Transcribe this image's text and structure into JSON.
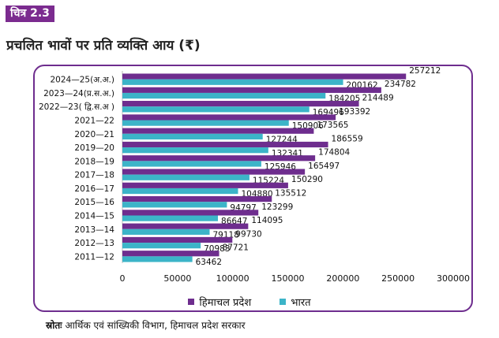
{
  "figure_tag": "चित्र 2.3",
  "title": "प्रचलित भावों पर प्रति व्यक्ति आय (₹)",
  "source": {
    "label": "स्रोतः",
    "text": "आर्थिक एवं सांख्यिकी विभाग, हिमाचल प्रदेश सरकार"
  },
  "colors": {
    "himachal": "#6e2d8e",
    "bharat": "#3cb4c8",
    "frame": "#6e2d8e",
    "tag_bg": "#7b2b8f"
  },
  "chart_data": {
    "type": "bar",
    "orientation": "horizontal",
    "categories": [
      "2024—25(अ.अ.)",
      "2023—24(प्र.स.अ.)",
      "2022—23( द्वि.स.अ )",
      "2021—22",
      "2020—21",
      "2019—20",
      "2018—19",
      "2017—18",
      "2016—17",
      "2015—16",
      "2014—15",
      "2013—14",
      "2012—13",
      "2011—12"
    ],
    "series": [
      {
        "name": "हिमाचल प्रदेश",
        "color": "#6e2d8e",
        "values": [
          257212,
          234782,
          214489,
          193392,
          173565,
          186559,
          174804,
          165497,
          150290,
          135512,
          123299,
          114095,
          99730,
          87721
        ]
      },
      {
        "name": "भारत",
        "color": "#3cb4c8",
        "values": [
          200162,
          184205,
          169496,
          150906,
          127244,
          132341,
          125946,
          115224,
          104880,
          94797,
          86647,
          79118,
          70983,
          63462
        ]
      }
    ],
    "xlim": [
      0,
      300000
    ],
    "xticks": [
      0,
      50000,
      100000,
      150000,
      200000,
      250000,
      300000
    ],
    "legend_position": "bottom",
    "grid": false
  }
}
